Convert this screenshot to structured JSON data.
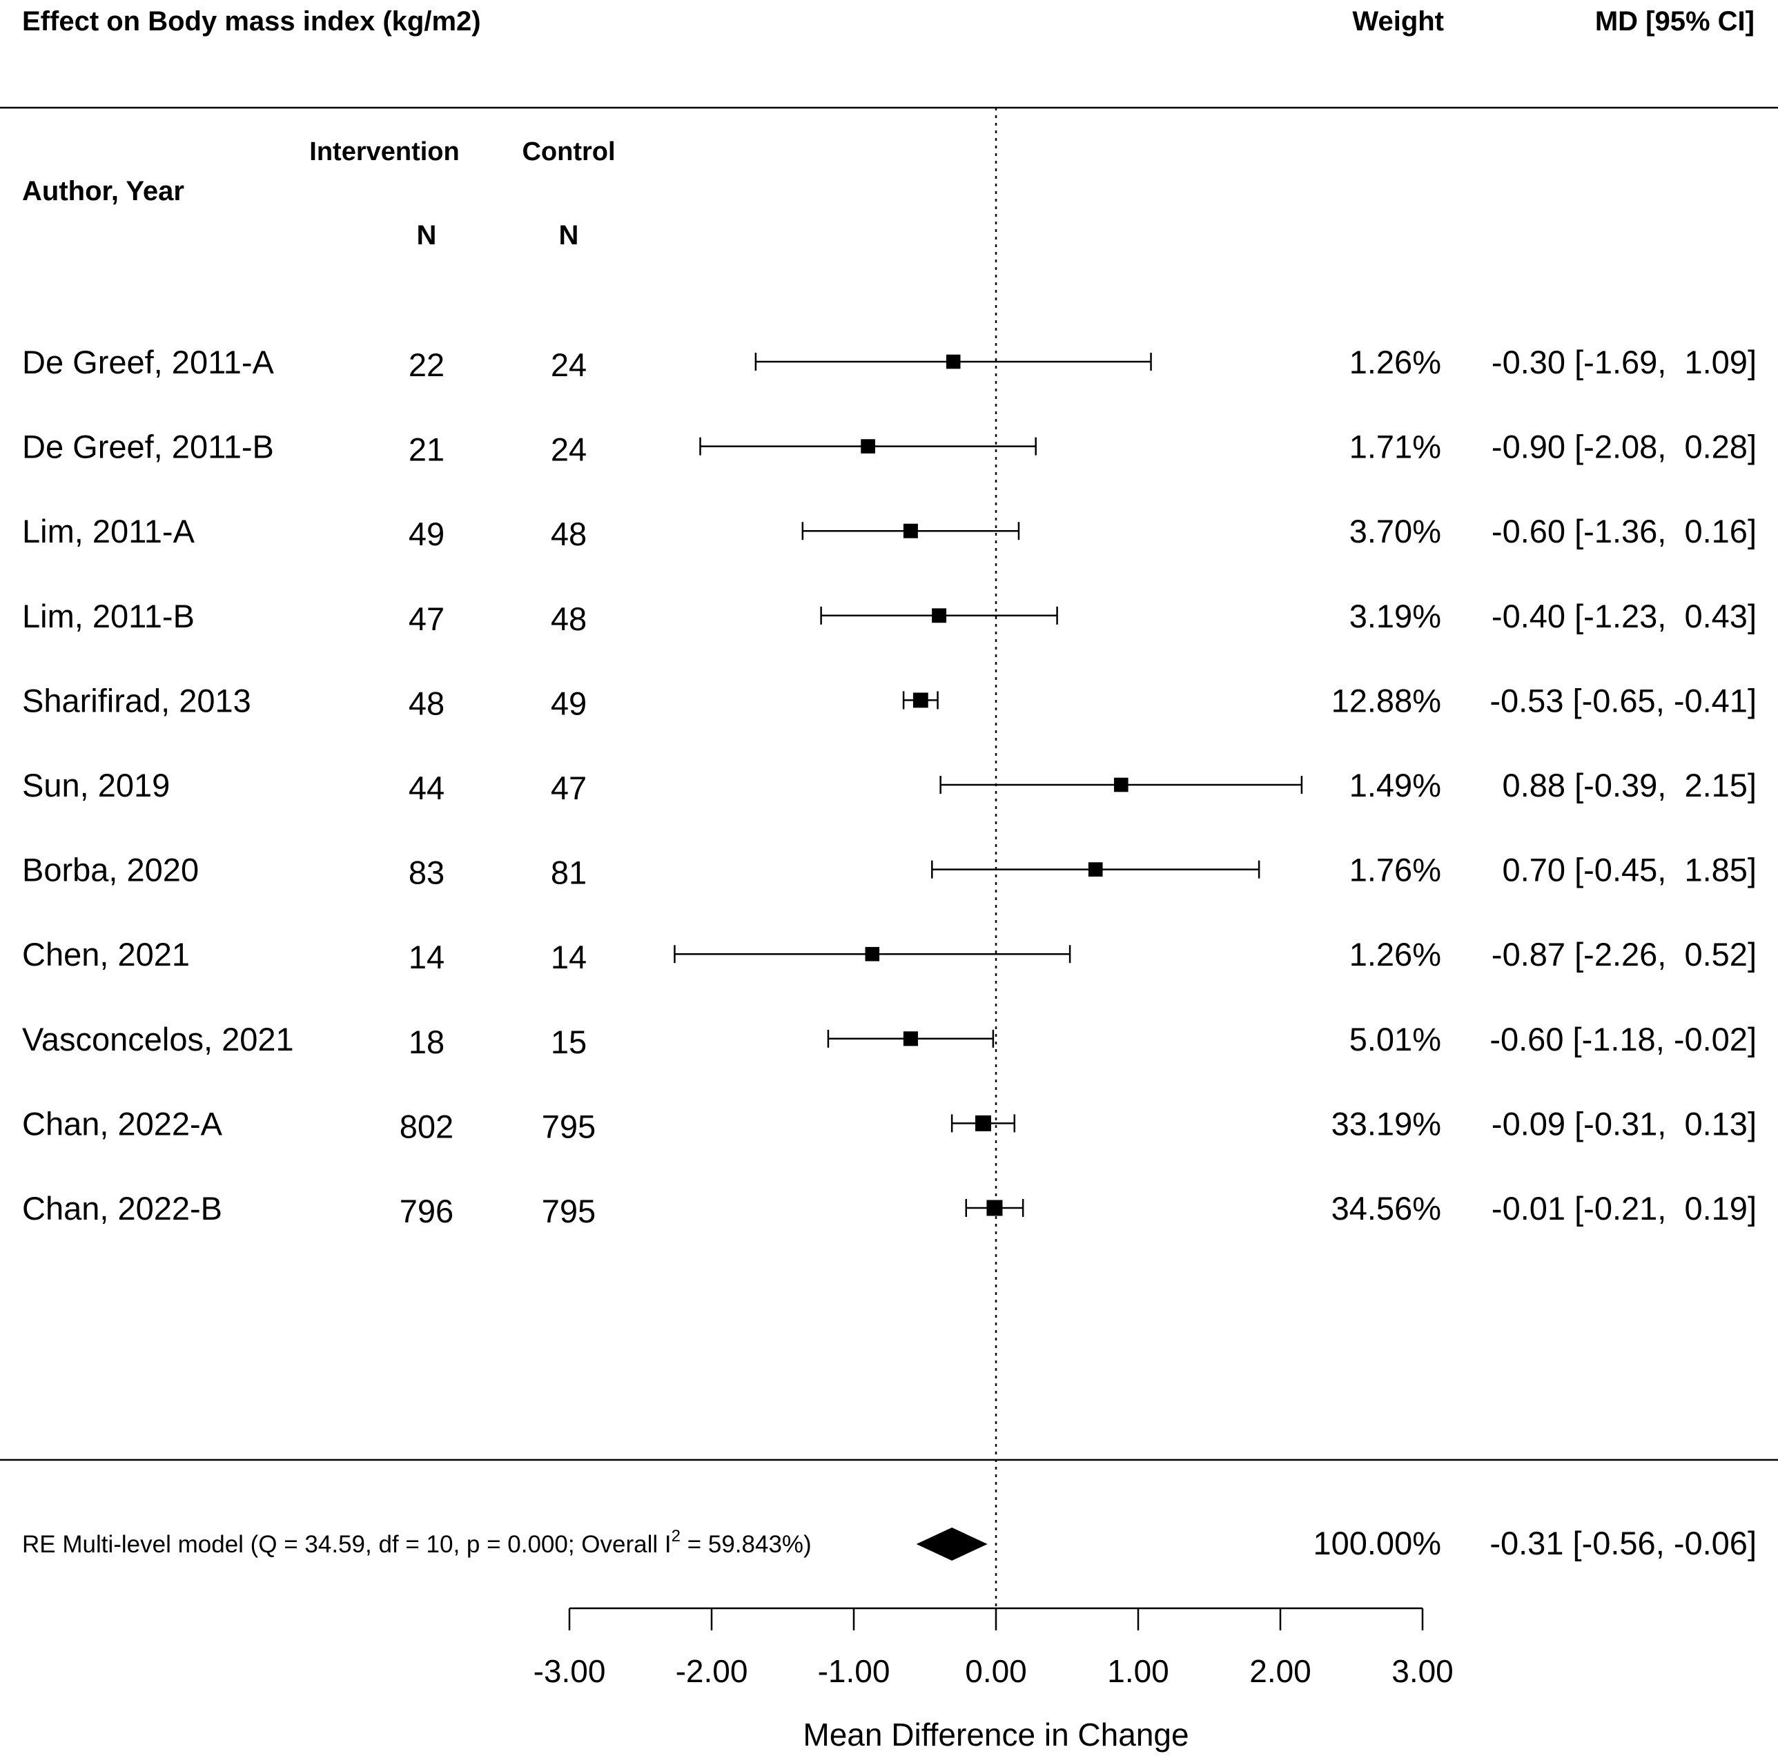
{
  "chart_data": {
    "type": "forest",
    "title": "Effect on Body mass index (kg/m2)",
    "columns": {
      "author": "Author, Year",
      "group_intervention": "Intervention",
      "group_control": "Control",
      "n_intervention": "N",
      "n_control": "N",
      "weight": "Weight",
      "effect": "MD [95% CI]"
    },
    "studies": [
      {
        "author": "De Greef, 2011-A",
        "n_int": "22",
        "n_ctl": "24",
        "md": -0.3,
        "lo": -1.69,
        "hi": 1.09,
        "weight": "1.26%",
        "ci_text": "-0.30 [-1.69,  1.09]"
      },
      {
        "author": "De Greef, 2011-B",
        "n_int": "21",
        "n_ctl": "24",
        "md": -0.9,
        "lo": -2.08,
        "hi": 0.28,
        "weight": "1.71%",
        "ci_text": "-0.90 [-2.08,  0.28]"
      },
      {
        "author": "Lim, 2011-A",
        "n_int": "49",
        "n_ctl": "48",
        "md": -0.6,
        "lo": -1.36,
        "hi": 0.16,
        "weight": "3.70%",
        "ci_text": "-0.60 [-1.36,  0.16]"
      },
      {
        "author": "Lim, 2011-B",
        "n_int": "47",
        "n_ctl": "48",
        "md": -0.4,
        "lo": -1.23,
        "hi": 0.43,
        "weight": "3.19%",
        "ci_text": "-0.40 [-1.23,  0.43]"
      },
      {
        "author": "Sharifirad, 2013",
        "n_int": "48",
        "n_ctl": "49",
        "md": -0.53,
        "lo": -0.65,
        "hi": -0.41,
        "weight": "12.88%",
        "ci_text": "-0.53 [-0.65, -0.41]"
      },
      {
        "author": "Sun, 2019",
        "n_int": "44",
        "n_ctl": "47",
        "md": 0.88,
        "lo": -0.39,
        "hi": 2.15,
        "weight": "1.49%",
        "ci_text": " 0.88 [-0.39,  2.15]"
      },
      {
        "author": "Borba, 2020",
        "n_int": "83",
        "n_ctl": "81",
        "md": 0.7,
        "lo": -0.45,
        "hi": 1.85,
        "weight": "1.76%",
        "ci_text": " 0.70 [-0.45,  1.85]"
      },
      {
        "author": "Chen, 2021",
        "n_int": "14",
        "n_ctl": "14",
        "md": -0.87,
        "lo": -2.26,
        "hi": 0.52,
        "weight": "1.26%",
        "ci_text": "-0.87 [-2.26,  0.52]"
      },
      {
        "author": "Vasconcelos, 2021",
        "n_int": "18",
        "n_ctl": "15",
        "md": -0.6,
        "lo": -1.18,
        "hi": -0.02,
        "weight": "5.01%",
        "ci_text": "-0.60 [-1.18, -0.02]"
      },
      {
        "author": "Chan, 2022-A",
        "n_int": "802",
        "n_ctl": "795",
        "md": -0.09,
        "lo": -0.31,
        "hi": 0.13,
        "weight": "33.19%",
        "ci_text": "-0.09 [-0.31,  0.13]"
      },
      {
        "author": "Chan, 2022-B",
        "n_int": "796",
        "n_ctl": "795",
        "md": -0.01,
        "lo": -0.21,
        "hi": 0.19,
        "weight": "34.56%",
        "ci_text": "-0.01 [-0.21,  0.19]"
      }
    ],
    "summary": {
      "label_prefix": "RE Multi-level model (Q = 34.59, df = 10, p = 0.000; Overall I",
      "label_sup": "2",
      "label_suffix": " = 59.843%)",
      "md": -0.31,
      "lo": -0.56,
      "hi": -0.06,
      "weight": "100.00%",
      "ci_text": "-0.31 [-0.56, -0.06]"
    },
    "x_axis": {
      "label": "Mean Difference in Change",
      "range": [
        -3.0,
        3.0
      ],
      "ticks": [
        -3.0,
        -2.0,
        -1.0,
        0.0,
        1.0,
        2.0,
        3.0
      ],
      "tick_labels": [
        "-3.00",
        "-2.00",
        "-1.00",
        "0.00",
        "1.00",
        "2.00",
        "3.00"
      ],
      "reference_line": 0.0
    }
  }
}
